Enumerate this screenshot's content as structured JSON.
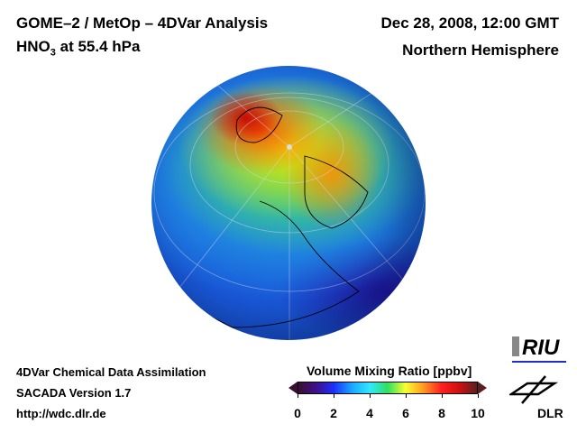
{
  "header": {
    "title_left_1": "GOME–2 / MetOp – 4DVar Analysis",
    "title_left_2_pre": "HNO",
    "title_left_2_sub": "3",
    "title_left_2_post": " at 55.4 hPa",
    "date": "Dec 28, 2008, 12:00 GMT",
    "region": "Northern Hemisphere"
  },
  "footer": {
    "line1": "4DVar Chemical Data Assimilation",
    "line2": "SACADA Version 1.7",
    "line3": "http://wdc.dlr.de"
  },
  "colorbar": {
    "label": "Volume Mixing Ratio [ppbv]",
    "ticks": [
      "0",
      "2",
      "4",
      "6",
      "8",
      "10"
    ],
    "min": 0,
    "max": 10
  },
  "logos": {
    "riu": "RIU",
    "dlr": "DLR"
  }
}
